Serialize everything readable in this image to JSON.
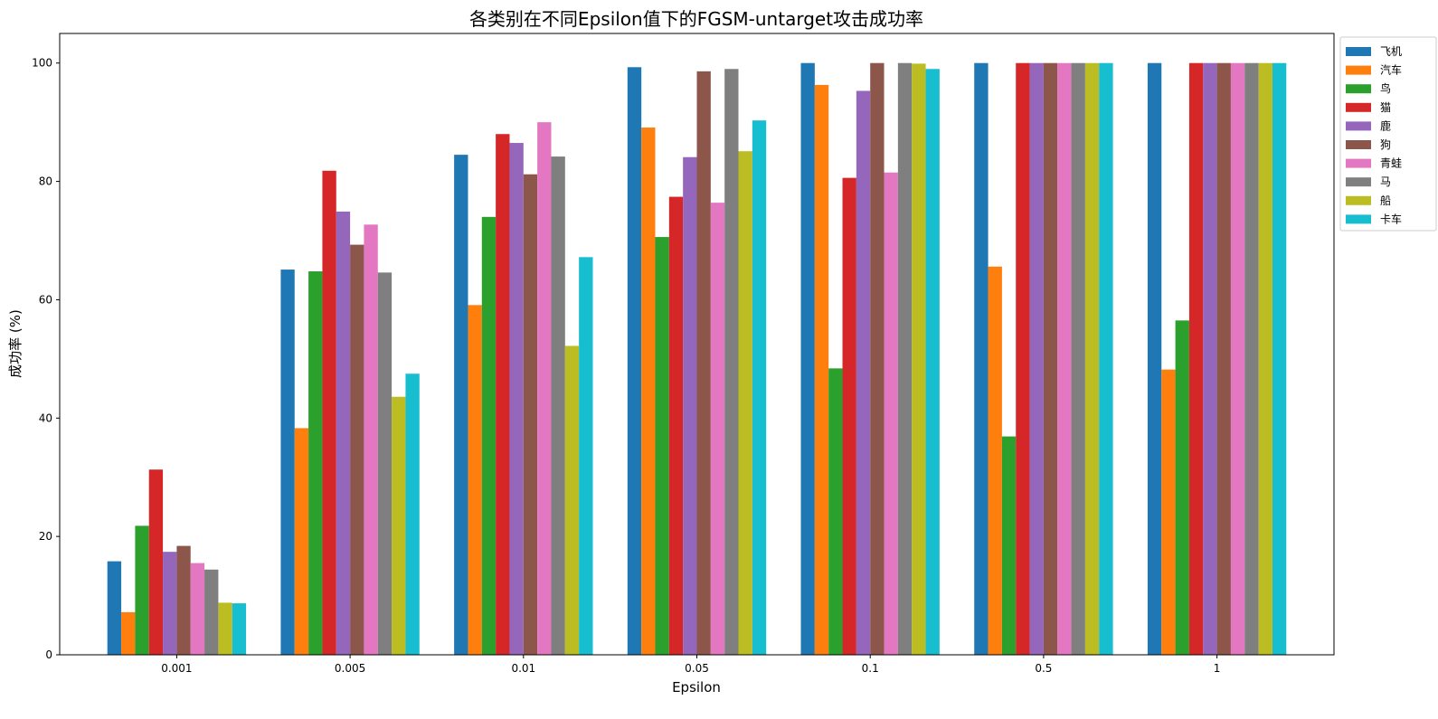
{
  "chart_data": {
    "type": "bar",
    "title": "各类别在不同Epsilon值下的FGSM-untarget攻击成功率",
    "xlabel": "Epsilon",
    "ylabel": "成功率 (%)",
    "ylim": [
      0,
      105
    ],
    "yticks": [
      0,
      20,
      40,
      60,
      80,
      100
    ],
    "categories": [
      "0.001",
      "0.005",
      "0.01",
      "0.05",
      "0.1",
      "0.5",
      "1"
    ],
    "legend_position": "outside-top-right",
    "grid": false,
    "series": [
      {
        "name": "飞机",
        "color": "#1f77b4",
        "values": [
          15.8,
          65.1,
          84.5,
          99.3,
          100,
          100,
          100
        ]
      },
      {
        "name": "汽车",
        "color": "#ff7f0e",
        "values": [
          7.2,
          38.3,
          59.1,
          89.1,
          96.3,
          65.6,
          48.2
        ]
      },
      {
        "name": "鸟",
        "color": "#2ca02c",
        "values": [
          21.8,
          64.8,
          74.0,
          70.6,
          48.4,
          36.9,
          56.5
        ]
      },
      {
        "name": "猫",
        "color": "#d62728",
        "values": [
          31.3,
          81.8,
          88.0,
          77.4,
          80.6,
          100,
          100
        ]
      },
      {
        "name": "鹿",
        "color": "#9467bd",
        "values": [
          17.4,
          74.9,
          86.5,
          84.1,
          95.3,
          100,
          100
        ]
      },
      {
        "name": "狗",
        "color": "#8c564b",
        "values": [
          18.4,
          69.3,
          81.2,
          98.6,
          100,
          100,
          100
        ]
      },
      {
        "name": "青蛙",
        "color": "#e377c2",
        "values": [
          15.5,
          72.7,
          90.0,
          76.4,
          81.5,
          100,
          100
        ]
      },
      {
        "name": "马",
        "color": "#7f7f7f",
        "values": [
          14.4,
          64.6,
          84.2,
          99.0,
          100,
          100,
          100
        ]
      },
      {
        "name": "船",
        "color": "#bcbd22",
        "values": [
          8.8,
          43.6,
          52.2,
          85.1,
          99.9,
          100,
          100
        ]
      },
      {
        "name": "卡车",
        "color": "#17becf",
        "values": [
          8.7,
          47.5,
          67.2,
          90.3,
          99.0,
          100,
          100
        ]
      }
    ]
  }
}
